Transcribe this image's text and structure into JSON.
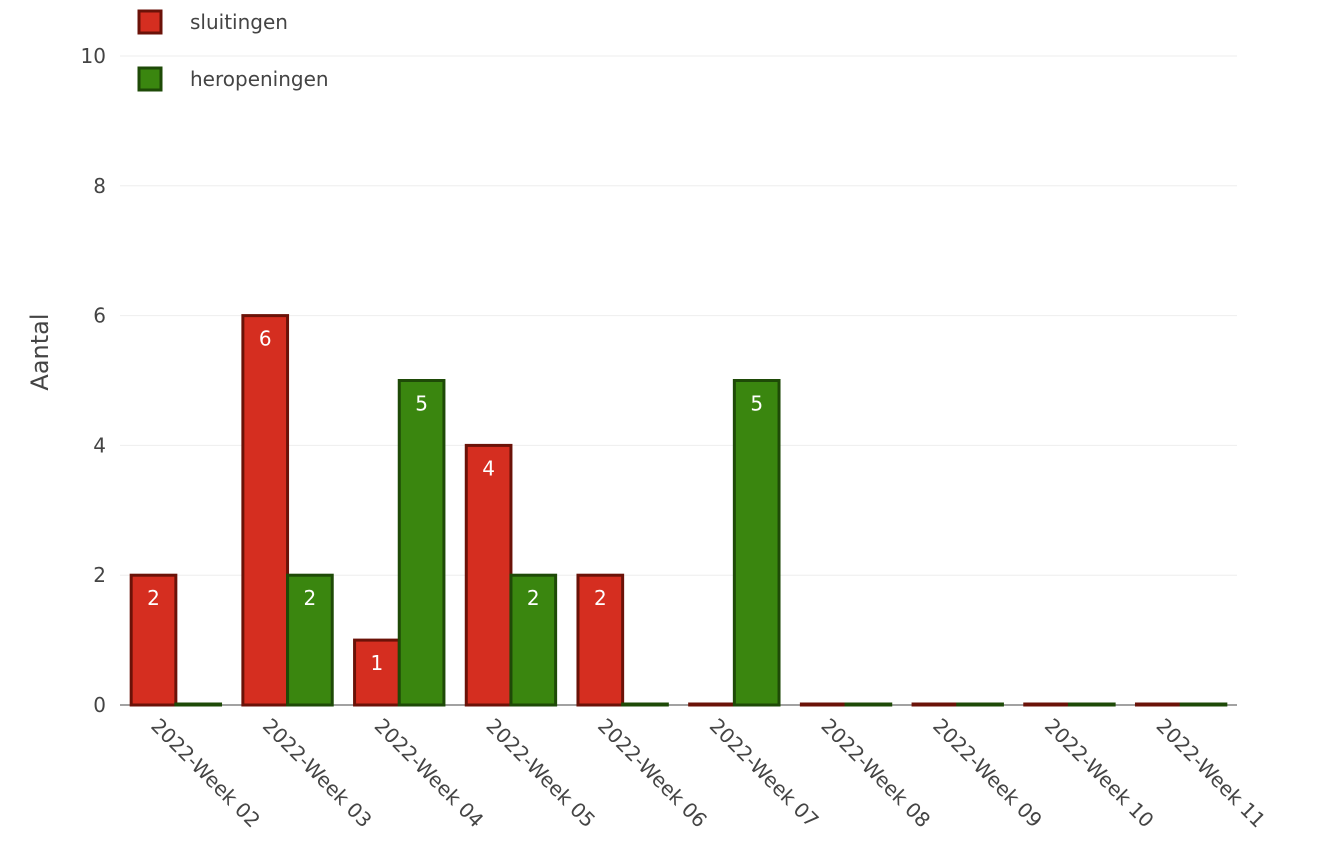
{
  "chart_data": {
    "type": "bar",
    "title": "",
    "xlabel": "",
    "ylabel": "Aantal",
    "ylim": [
      0,
      10
    ],
    "yticks": [
      "0",
      "2",
      "4",
      "6",
      "8",
      "10"
    ],
    "grid": true,
    "legend_position": "top-left",
    "categories": [
      "2022-Week 02",
      "2022-Week 03",
      "2022-Week 04",
      "2022-Week 05",
      "2022-Week 06",
      "2022-Week 07",
      "2022-Week 08",
      "2022-Week 09",
      "2022-Week 10",
      "2022-Week 11"
    ],
    "series": [
      {
        "name": "sluitingen",
        "values": [
          2,
          6,
          1,
          4,
          2,
          0,
          0,
          0,
          0,
          0
        ],
        "color": "#d52e20",
        "border_color": "#6b1208"
      },
      {
        "name": "heropeningen",
        "values": [
          0,
          2,
          5,
          2,
          0,
          5,
          0,
          0,
          0,
          0
        ],
        "color": "#3a860f",
        "border_color": "#1e4a07"
      }
    ]
  }
}
